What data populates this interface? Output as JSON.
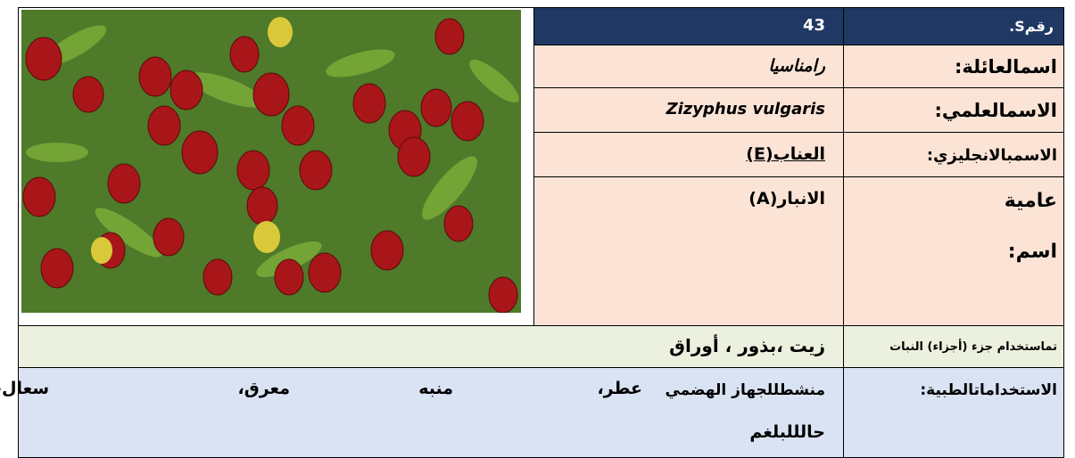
{
  "header": {
    "label": "رقمS.",
    "value": "43"
  },
  "family": {
    "label": "اسمالعائلة:",
    "value": "رامناسيا"
  },
  "scientific": {
    "label": "الاسمالعلمي:",
    "value": "Zizyphus vulgaris"
  },
  "english": {
    "label": "الاسمبالانجليزي:",
    "value": "العناب(E)"
  },
  "common": {
    "label_lines": [
      "عامية",
      "اسم:"
    ],
    "value": "الانبار(A)"
  },
  "parts": {
    "label": "تماستخدام جزء (أجزاء) النبات",
    "value": "زيت ،بذور ، أوراق"
  },
  "medical": {
    "label": "الاستخداماتالطبية:",
    "words": [
      "منشطللجهاز الهضمي",
      "عطر،",
      "منبه",
      "معرق،",
      "سعال،",
      "حالللبلغم"
    ]
  }
}
